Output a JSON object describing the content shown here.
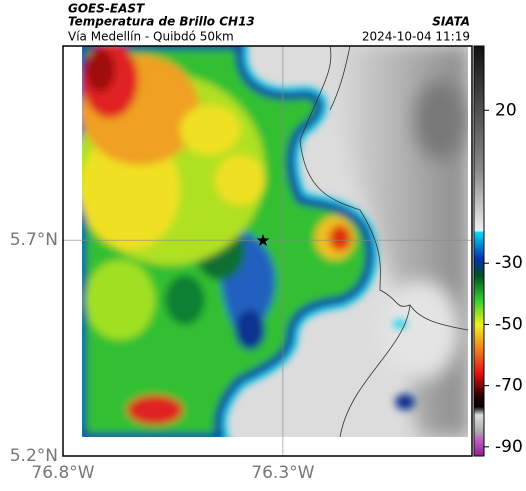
{
  "header": {
    "source": "GOES-EAST",
    "title": "Temperatura de Brillo CH13",
    "subtitle": "Vía Medellín - Quibdó 50km",
    "agency": "SIATA",
    "datetime": "2024-10-04 11:19"
  },
  "map": {
    "latlim": [
      5.2,
      6.15
    ],
    "lonlim": [
      -76.8,
      -75.87
    ],
    "latticks": [
      {
        "value": 5.2,
        "label": "5.2°N"
      },
      {
        "value": 5.7,
        "label": "5.7°N"
      }
    ],
    "lonticks": [
      {
        "value": -76.8,
        "label": "76.8°W"
      },
      {
        "value": -76.3,
        "label": "76.3°W"
      }
    ]
  },
  "colorbar": {
    "lim": [
      -93,
      41
    ],
    "ticks": [
      20,
      -30,
      -50,
      -70,
      -90
    ]
  }
}
